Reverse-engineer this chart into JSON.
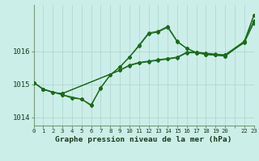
{
  "background_color": "#cceee8",
  "grid_color": "#aad4cc",
  "line_color": "#1a6b1a",
  "xlabel": "Graphe pression niveau de la mer (hPa)",
  "ylim": [
    1013.75,
    1017.4
  ],
  "yticks": [
    1014,
    1015,
    1016
  ],
  "xlim": [
    0,
    23
  ],
  "xticklabels": [
    "0",
    "1",
    "2",
    "3",
    "4",
    "5",
    "6",
    "7",
    "8",
    "9",
    "10",
    "11",
    "12",
    "13",
    "14",
    "15",
    "16",
    "17",
    "18",
    "19",
    "20",
    "",
    "22",
    "23"
  ],
  "series": [
    {
      "x": [
        0,
        1,
        2,
        3,
        9,
        10,
        11,
        12,
        13,
        14,
        15,
        16,
        17,
        18,
        19,
        20,
        22,
        23
      ],
      "y": [
        1015.05,
        1014.85,
        1014.75,
        1014.72,
        1015.42,
        1015.56,
        1015.64,
        1015.68,
        1015.72,
        1015.76,
        1015.8,
        1015.95,
        1015.95,
        1015.92,
        1015.9,
        1015.88,
        1016.25,
        1016.85
      ]
    },
    {
      "x": [
        0,
        1,
        2,
        3,
        9,
        10,
        11,
        12,
        13,
        14,
        15,
        16,
        17,
        18,
        19,
        20,
        22,
        23
      ],
      "y": [
        1015.05,
        1014.85,
        1014.75,
        1014.72,
        1015.42,
        1015.58,
        1015.66,
        1015.7,
        1015.74,
        1015.78,
        1015.82,
        1015.97,
        1015.97,
        1015.94,
        1015.91,
        1015.89,
        1016.3,
        1016.92
      ]
    },
    {
      "x": [
        0,
        1,
        3,
        4,
        5,
        6,
        7,
        8,
        9,
        10,
        11,
        12,
        13,
        14,
        15,
        16,
        17,
        18,
        19,
        20,
        22,
        23
      ],
      "y": [
        1015.05,
        1014.85,
        1014.68,
        1014.58,
        1014.55,
        1014.38,
        1014.88,
        1015.28,
        1015.52,
        1015.82,
        1016.15,
        1016.52,
        1016.58,
        1016.72,
        1016.28,
        1016.08,
        1015.95,
        1015.9,
        1015.88,
        1015.85,
        1016.28,
        1017.08
      ]
    },
    {
      "x": [
        0,
        1,
        3,
        5,
        6,
        7,
        8,
        9,
        10,
        11,
        12,
        13,
        14,
        15,
        16,
        17,
        18,
        19,
        20,
        22,
        23
      ],
      "y": [
        1015.05,
        1014.85,
        1014.68,
        1014.55,
        1014.35,
        1014.9,
        1015.28,
        1015.52,
        1015.82,
        1016.18,
        1016.55,
        1016.6,
        1016.75,
        1016.3,
        1016.08,
        1015.96,
        1015.9,
        1015.88,
        1015.85,
        1016.28,
        1017.08
      ]
    }
  ]
}
